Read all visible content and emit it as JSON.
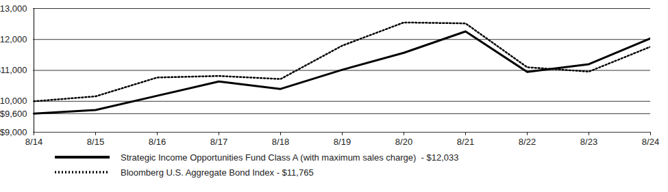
{
  "chart_data": {
    "type": "line",
    "x": [
      "8/14",
      "8/15",
      "8/16",
      "8/17",
      "8/18",
      "8/19",
      "8/20",
      "8/21",
      "8/22",
      "8/23",
      "8/24"
    ],
    "series": [
      {
        "name": "Strategic Income Opportunities Fund Class A (with maximum sales charge)  - $12,033",
        "color": "#000000",
        "line_style": "solid",
        "values": [
          9600,
          9720,
          10180,
          10640,
          10400,
          11020,
          11570,
          12260,
          10950,
          11200,
          12033
        ]
      },
      {
        "name": "Bloomberg U.S. Aggregate Bond Index - $11,765",
        "color": "#000000",
        "line_style": "dotted",
        "values": [
          10000,
          10160,
          10770,
          10820,
          10720,
          11800,
          12550,
          12520,
          11100,
          10960,
          11765
        ]
      }
    ],
    "ylim": [
      9000,
      13000
    ],
    "yticks": [
      {
        "value": 9000,
        "label": "$9,000"
      },
      {
        "value": 9600,
        "label": "$9,600"
      },
      {
        "value": 10000,
        "label": "$10,000"
      },
      {
        "value": 11000,
        "label": "$11,000"
      },
      {
        "value": 12000,
        "label": "$12,000"
      },
      {
        "value": 13000,
        "label": "$13,000"
      }
    ],
    "grid": true
  }
}
